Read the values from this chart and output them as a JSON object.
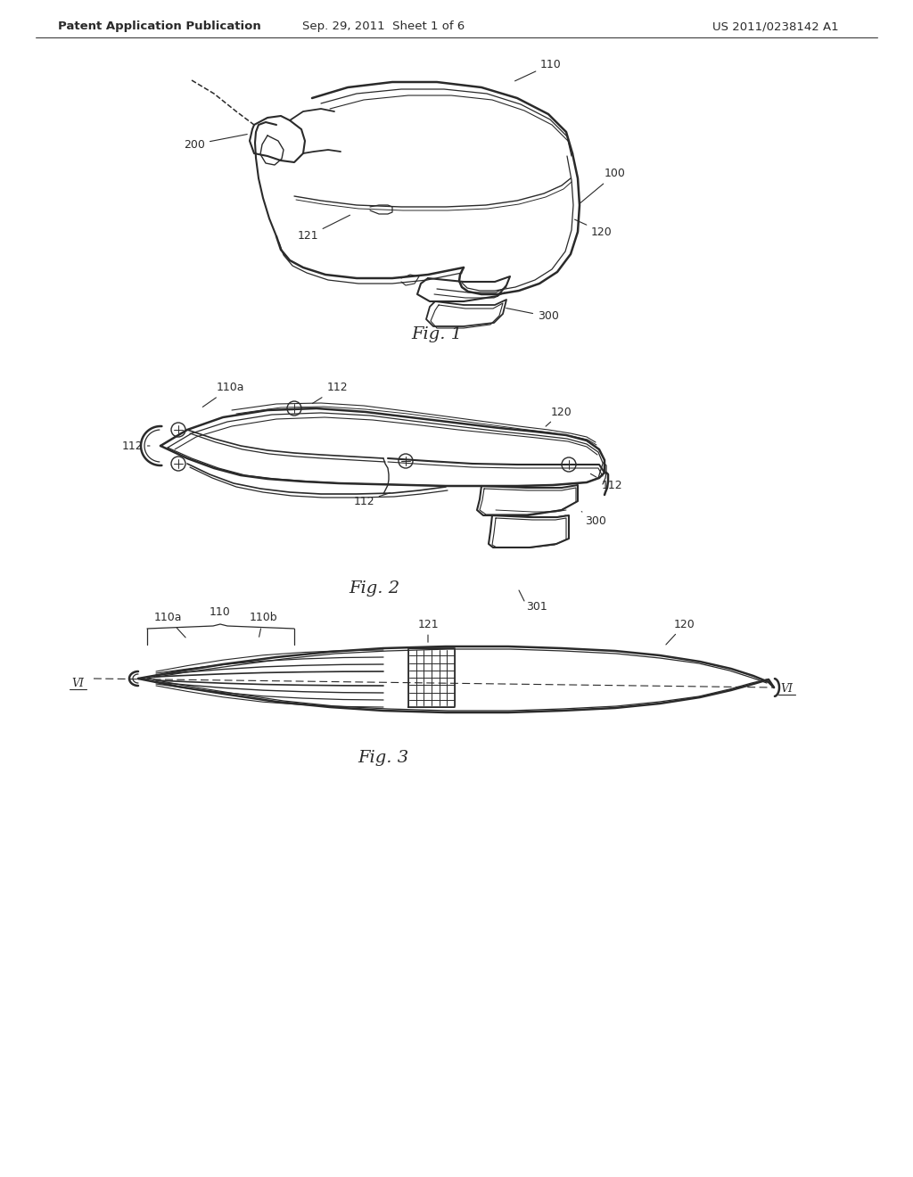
{
  "bg_color": "#ffffff",
  "line_color": "#2a2a2a",
  "header_left": "Patent Application Publication",
  "header_center": "Sep. 29, 2011  Sheet 1 of 6",
  "header_right": "US 2011/0238142 A1",
  "fig1_caption": "Fig. 1",
  "fig2_caption": "Fig. 2",
  "fig3_caption": "Fig. 3"
}
